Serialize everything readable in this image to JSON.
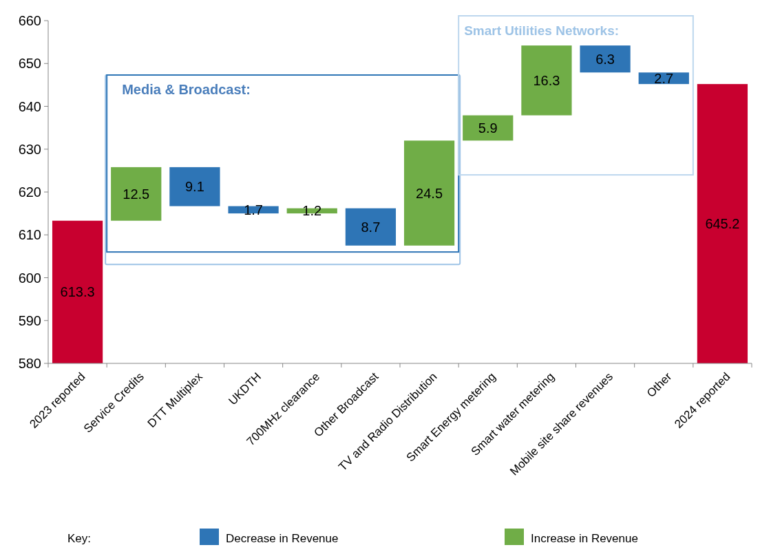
{
  "chart_data": {
    "type": "bar",
    "categories": [
      "2023 reported",
      "Service Credits",
      "DTT Multiplex",
      "UKDTH",
      "700MHz clearance",
      "Other Broadcast",
      "TV and Radio Distribution",
      "Smart Energy metering",
      "Smart water metering",
      "Mobile site share revenues",
      "Other",
      "2024 reported"
    ],
    "series": [
      {
        "color": "#c8002f",
        "values": [
          613.3,
          null,
          null,
          null,
          null,
          null,
          null,
          null,
          null,
          null,
          null,
          645.2
        ],
        "value_labels": [
          "613.3",
          null,
          null,
          null,
          null,
          null,
          null,
          null,
          null,
          null,
          null,
          "645.2"
        ]
      },
      {
        "name": "Decrease in Revenue",
        "color": "#2e75b6",
        "values": [
          null,
          null,
          -9.1,
          -1.7,
          null,
          -8.7,
          null,
          null,
          null,
          -6.3,
          -2.7,
          null
        ],
        "base": [
          null,
          null,
          625.8,
          616.7,
          null,
          616.2,
          null,
          null,
          null,
          654.2,
          647.9,
          null
        ],
        "value_labels": [
          null,
          null,
          "9.1",
          "1.7",
          null,
          "8.7",
          null,
          null,
          null,
          "6.3",
          "2.7",
          null
        ]
      },
      {
        "name": "Increase in Revenue",
        "color": "#70ad47",
        "values": [
          null,
          12.5,
          null,
          null,
          1.2,
          null,
          24.5,
          5.9,
          16.3,
          null,
          null,
          null
        ],
        "base": [
          null,
          613.3,
          null,
          null,
          615.0,
          null,
          607.5,
          632.0,
          637.9,
          null,
          null,
          null
        ],
        "value_labels": [
          null,
          "12.5",
          null,
          null,
          "1.2",
          null,
          "24.5",
          "5.9",
          "16.3",
          null,
          null,
          null
        ]
      }
    ],
    "ylim": [
      580,
      660
    ],
    "yticks": [
      580,
      590,
      600,
      610,
      620,
      630,
      640,
      650,
      660
    ],
    "grid": false,
    "legend": "bottom",
    "legend_title": "Key:",
    "annotations": [
      "Media & Broadcast:",
      "Smart Utilities Networks:"
    ]
  }
}
